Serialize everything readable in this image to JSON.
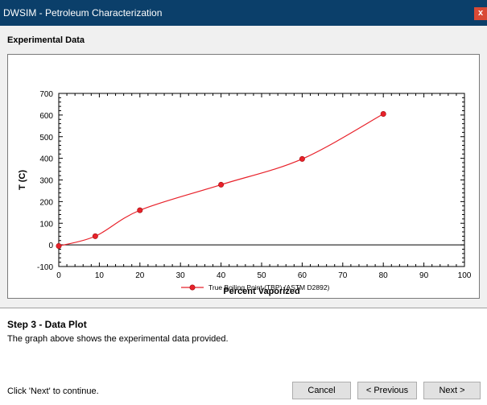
{
  "window": {
    "title": "DWSIM - Petroleum Characterization",
    "close_label": "x"
  },
  "panel": {
    "section_title": "Experimental Data"
  },
  "chart_data": {
    "type": "line",
    "xlabel": "Percent Vaporized",
    "ylabel": "T (C)",
    "xlim": [
      0,
      100
    ],
    "ylim": [
      -100,
      700
    ],
    "xticks": [
      0,
      10,
      20,
      30,
      40,
      50,
      60,
      70,
      80,
      90,
      100
    ],
    "yticks": [
      -100,
      0,
      100,
      200,
      300,
      400,
      500,
      600,
      700
    ],
    "legend_position": "bottom-center",
    "series": [
      {
        "name": "True Boiling Point (TBP) (ASTM D2892)",
        "color": "#e8212a",
        "x": [
          0,
          9,
          20,
          40,
          60,
          80
        ],
        "y": [
          -5,
          40,
          160,
          278,
          397,
          605
        ]
      }
    ]
  },
  "step": {
    "title": "Step 3 - Data Plot",
    "description": "The graph above shows the experimental data provided."
  },
  "footer": {
    "hint": "Click 'Next' to continue.",
    "cancel_label": "Cancel",
    "previous_label": "< Previous",
    "next_label": "Next >"
  }
}
